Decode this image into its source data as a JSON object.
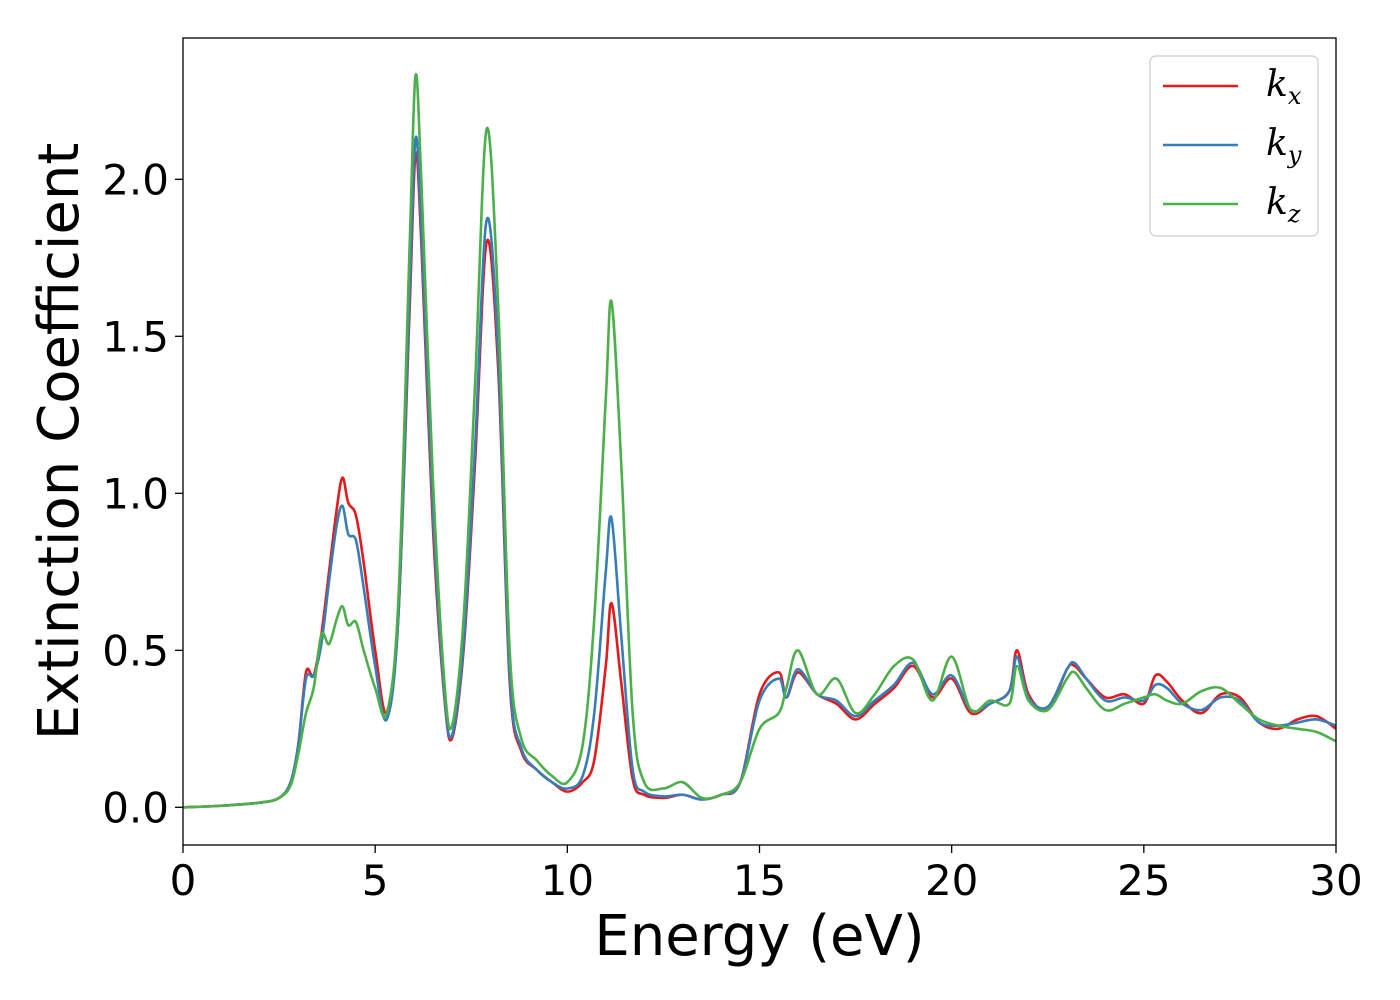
{
  "chart_data": {
    "type": "line",
    "xlabel": "Energy (eV)",
    "ylabel": "Extinction Coefficient",
    "xlim": [
      0,
      30
    ],
    "ylim": [
      -0.12,
      2.45
    ],
    "xticks": [
      0,
      5,
      10,
      15,
      20,
      25,
      30
    ],
    "xtick_labels": [
      "0",
      "5",
      "10",
      "15",
      "20",
      "25",
      "30"
    ],
    "yticks": [
      0.0,
      0.5,
      1.0,
      1.5,
      2.0
    ],
    "ytick_labels": [
      "0.0",
      "0.5",
      "1.0",
      "1.5",
      "2.0"
    ],
    "grid": false,
    "legend_position": "top-right",
    "series": [
      {
        "name": "k_x",
        "label_base": "k",
        "label_sub": "x",
        "color": "#e41a1c",
        "x": [
          0,
          1,
          2,
          2.5,
          2.8,
          3.0,
          3.2,
          3.4,
          3.6,
          3.8,
          4.0,
          4.15,
          4.3,
          4.5,
          4.7,
          5.0,
          5.3,
          5.6,
          5.9,
          6.05,
          6.2,
          6.5,
          6.8,
          7.0,
          7.3,
          7.6,
          7.9,
          8.2,
          8.5,
          8.8,
          9.2,
          9.6,
          10.0,
          10.4,
          10.7,
          11.0,
          11.15,
          11.4,
          11.7,
          12.0,
          12.5,
          13.0,
          13.5,
          14.0,
          14.5,
          15.0,
          15.5,
          15.7,
          16.0,
          16.5,
          17.0,
          17.5,
          18.0,
          18.5,
          19.0,
          19.5,
          20.0,
          20.5,
          21.0,
          21.5,
          21.7,
          22.0,
          22.5,
          23.0,
          23.2,
          23.5,
          24.0,
          24.5,
          25.0,
          25.3,
          25.6,
          26.0,
          26.5,
          27.0,
          27.5,
          28.0,
          28.5,
          29.0,
          29.5,
          30.0
        ],
        "y": [
          0.0,
          0.005,
          0.015,
          0.03,
          0.08,
          0.2,
          0.43,
          0.42,
          0.55,
          0.75,
          0.95,
          1.05,
          0.97,
          0.93,
          0.78,
          0.5,
          0.3,
          0.6,
          1.6,
          2.08,
          1.8,
          0.9,
          0.35,
          0.22,
          0.5,
          1.1,
          1.8,
          1.4,
          0.4,
          0.18,
          0.12,
          0.08,
          0.05,
          0.08,
          0.15,
          0.45,
          0.65,
          0.4,
          0.09,
          0.04,
          0.03,
          0.04,
          0.025,
          0.04,
          0.08,
          0.36,
          0.43,
          0.35,
          0.43,
          0.36,
          0.33,
          0.28,
          0.33,
          0.38,
          0.45,
          0.35,
          0.41,
          0.3,
          0.33,
          0.37,
          0.5,
          0.36,
          0.31,
          0.44,
          0.45,
          0.41,
          0.35,
          0.36,
          0.33,
          0.42,
          0.4,
          0.34,
          0.3,
          0.36,
          0.35,
          0.27,
          0.25,
          0.28,
          0.29,
          0.25
        ]
      },
      {
        "name": "k_y",
        "label_base": "k",
        "label_sub": "y",
        "color": "#377eb8",
        "x": [
          0,
          1,
          2,
          2.5,
          2.8,
          3.0,
          3.2,
          3.4,
          3.6,
          3.8,
          4.0,
          4.15,
          4.3,
          4.5,
          4.7,
          5.0,
          5.3,
          5.6,
          5.9,
          6.05,
          6.2,
          6.5,
          6.8,
          7.0,
          7.3,
          7.6,
          7.9,
          8.2,
          8.5,
          8.8,
          9.2,
          9.6,
          10.0,
          10.4,
          10.7,
          11.0,
          11.15,
          11.4,
          11.7,
          12.0,
          12.5,
          13.0,
          13.5,
          14.0,
          14.5,
          15.0,
          15.5,
          15.7,
          16.0,
          16.5,
          17.0,
          17.5,
          18.0,
          18.5,
          19.0,
          19.5,
          20.0,
          20.5,
          21.0,
          21.5,
          21.7,
          22.0,
          22.5,
          23.0,
          23.2,
          23.5,
          24.0,
          24.5,
          25.0,
          25.3,
          25.6,
          26.0,
          26.5,
          27.0,
          27.5,
          28.0,
          28.5,
          29.0,
          29.5,
          30.0
        ],
        "y": [
          0.0,
          0.005,
          0.015,
          0.03,
          0.08,
          0.2,
          0.41,
          0.42,
          0.52,
          0.72,
          0.9,
          0.96,
          0.87,
          0.85,
          0.7,
          0.45,
          0.28,
          0.6,
          1.65,
          2.13,
          1.85,
          0.95,
          0.36,
          0.23,
          0.52,
          1.15,
          1.87,
          1.45,
          0.42,
          0.19,
          0.12,
          0.08,
          0.06,
          0.1,
          0.3,
          0.75,
          0.92,
          0.55,
          0.12,
          0.05,
          0.035,
          0.04,
          0.025,
          0.04,
          0.08,
          0.34,
          0.41,
          0.35,
          0.44,
          0.36,
          0.34,
          0.29,
          0.34,
          0.39,
          0.46,
          0.36,
          0.42,
          0.31,
          0.33,
          0.37,
          0.48,
          0.35,
          0.32,
          0.44,
          0.46,
          0.41,
          0.34,
          0.35,
          0.34,
          0.39,
          0.38,
          0.33,
          0.31,
          0.35,
          0.34,
          0.27,
          0.26,
          0.27,
          0.28,
          0.26
        ]
      },
      {
        "name": "k_z",
        "label_base": "k",
        "label_sub": "z",
        "color": "#4daf4a",
        "x": [
          0,
          1,
          2,
          2.5,
          2.8,
          3.0,
          3.2,
          3.4,
          3.6,
          3.8,
          4.0,
          4.15,
          4.3,
          4.5,
          4.7,
          5.0,
          5.3,
          5.6,
          5.9,
          6.05,
          6.2,
          6.5,
          6.8,
          7.0,
          7.3,
          7.6,
          7.9,
          8.2,
          8.5,
          8.8,
          9.2,
          9.6,
          10.0,
          10.4,
          10.7,
          11.0,
          11.15,
          11.4,
          11.7,
          12.0,
          12.5,
          13.0,
          13.5,
          14.0,
          14.5,
          15.0,
          15.5,
          15.7,
          16.0,
          16.5,
          17.0,
          17.5,
          18.0,
          18.5,
          19.0,
          19.5,
          20.0,
          20.5,
          21.0,
          21.5,
          21.7,
          22.0,
          22.5,
          23.0,
          23.2,
          23.5,
          24.0,
          24.5,
          25.0,
          25.3,
          25.6,
          26.0,
          26.5,
          27.0,
          27.5,
          28.0,
          28.5,
          29.0,
          29.5,
          30.0
        ],
        "y": [
          0.0,
          0.005,
          0.015,
          0.03,
          0.07,
          0.17,
          0.3,
          0.38,
          0.55,
          0.52,
          0.6,
          0.64,
          0.58,
          0.59,
          0.5,
          0.38,
          0.3,
          0.65,
          1.8,
          2.33,
          2.0,
          1.05,
          0.4,
          0.26,
          0.6,
          1.35,
          2.16,
          1.6,
          0.5,
          0.22,
          0.15,
          0.1,
          0.08,
          0.2,
          0.6,
          1.3,
          1.61,
          1.1,
          0.3,
          0.08,
          0.06,
          0.08,
          0.03,
          0.04,
          0.08,
          0.25,
          0.3,
          0.38,
          0.5,
          0.36,
          0.41,
          0.3,
          0.36,
          0.45,
          0.47,
          0.34,
          0.48,
          0.31,
          0.34,
          0.33,
          0.45,
          0.34,
          0.31,
          0.41,
          0.43,
          0.38,
          0.31,
          0.33,
          0.35,
          0.36,
          0.34,
          0.33,
          0.37,
          0.38,
          0.33,
          0.28,
          0.26,
          0.25,
          0.24,
          0.21
        ]
      }
    ]
  }
}
